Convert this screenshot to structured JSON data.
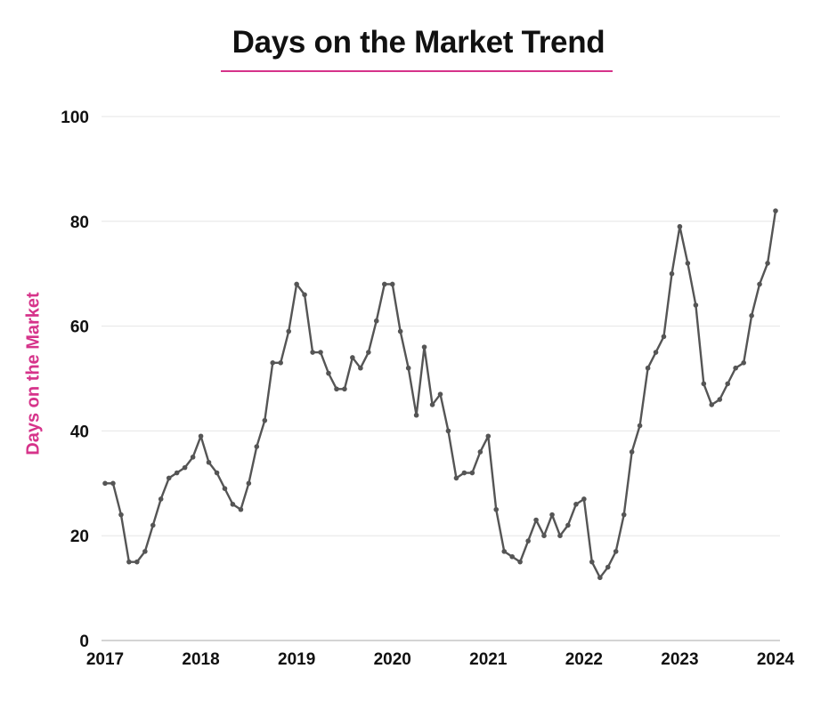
{
  "chart_data": {
    "type": "line",
    "title": "Days on the Market Trend",
    "xlabel": "",
    "ylabel": "Days on the Market",
    "x_ticks": [
      "2017",
      "2018",
      "2019",
      "2020",
      "2021",
      "2022",
      "2023",
      "2024"
    ],
    "y_ticks": [
      "0",
      "20",
      "40",
      "60",
      "80",
      "100"
    ],
    "xlim": [
      2017,
      2024
    ],
    "ylim": [
      0,
      100
    ],
    "grid": true,
    "colors": {
      "line": "#555555",
      "title_underline": "#d6338a",
      "ylabel": "#d6338a",
      "grid": "#e6e6e6"
    },
    "series": [
      {
        "x": [
          2017.0,
          2017.083,
          2017.167,
          2017.25,
          2017.333,
          2017.417,
          2017.5,
          2017.583,
          2017.667,
          2017.75,
          2017.833,
          2017.917,
          2018.0,
          2018.083,
          2018.167,
          2018.25,
          2018.333,
          2018.417,
          2018.5,
          2018.583,
          2018.667,
          2018.75,
          2018.833,
          2018.917,
          2019.0,
          2019.083,
          2019.167,
          2019.25,
          2019.333,
          2019.417,
          2019.5,
          2019.583,
          2019.667,
          2019.75,
          2019.833,
          2019.917,
          2020.0,
          2020.083,
          2020.167,
          2020.25,
          2020.333,
          2020.417,
          2020.5,
          2020.583,
          2020.667,
          2020.75,
          2020.833,
          2020.917,
          2021.0,
          2021.083,
          2021.167,
          2021.25,
          2021.333,
          2021.417,
          2021.5,
          2021.583,
          2021.667,
          2021.75,
          2021.833,
          2021.917,
          2022.0,
          2022.083,
          2022.167,
          2022.25,
          2022.333,
          2022.417,
          2022.5,
          2022.583,
          2022.667,
          2022.75,
          2022.833,
          2022.917,
          2023.0,
          2023.083,
          2023.167,
          2023.25,
          2023.333,
          2023.417,
          2023.5,
          2023.583,
          2023.667,
          2023.75,
          2023.833,
          2023.917,
          2024.0
        ],
        "values": [
          30,
          30,
          24,
          15,
          15,
          17,
          22,
          27,
          31,
          32,
          33,
          35,
          39,
          34,
          32,
          29,
          26,
          25,
          30,
          37,
          42,
          53,
          53,
          59,
          68,
          66,
          55,
          55,
          51,
          48,
          48,
          54,
          52,
          55,
          61,
          68,
          68,
          59,
          52,
          43,
          56,
          45,
          47,
          40,
          31,
          32,
          32,
          36,
          39,
          25,
          17,
          16,
          15,
          19,
          23,
          20,
          24,
          20,
          22,
          26,
          27,
          15,
          12,
          14,
          17,
          24,
          36,
          41,
          52,
          55,
          58,
          70,
          79,
          72,
          64,
          49,
          45,
          46,
          49,
          52,
          53,
          62,
          68,
          72,
          82
        ]
      }
    ]
  }
}
